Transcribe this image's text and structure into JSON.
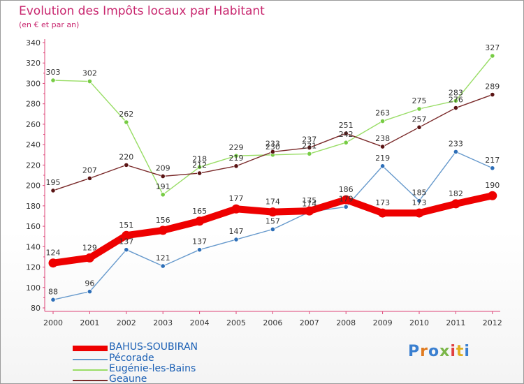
{
  "title": "Evolution des Impôts locaux par Habitant",
  "subtitle": "(en € et par an)",
  "brand": "Proxiti",
  "chart_data": {
    "type": "line",
    "title": "Evolution des Impôts locaux par Habitant",
    "subtitle": "(en € et par an)",
    "xlabel": "",
    "ylabel": "",
    "ylim": [
      80,
      340
    ],
    "ytick_step": 20,
    "grid": false,
    "legend_position": "bottom-left",
    "x": [
      "2000",
      "2001",
      "2002",
      "2003",
      "2004",
      "2005",
      "2006",
      "2007",
      "2008",
      "2009",
      "2010",
      "2011",
      "2012"
    ],
    "series": [
      {
        "name": "Pécorade",
        "color": "#6699cc",
        "marker_color": "#2e6fb8",
        "values": [
          88,
          96,
          137,
          121,
          137,
          147,
          157,
          174,
          179,
          219,
          185,
          233,
          217
        ]
      },
      {
        "name": "Eugénie-les-Bains",
        "color": "#99dd66",
        "marker_color": "#77cc44",
        "values": [
          303,
          302,
          262,
          191,
          218,
          229,
          230,
          231,
          242,
          263,
          275,
          283,
          327
        ]
      },
      {
        "name": "Geaune",
        "color": "#7a2a2a",
        "marker_color": "#5a1414",
        "values": [
          195,
          207,
          220,
          209,
          212,
          219,
          233,
          237,
          251,
          238,
          257,
          276,
          289
        ]
      },
      {
        "name": "BAHUS-SOUBIRAN",
        "color": "#ee0000",
        "marker_color": "#ee0000",
        "values": [
          124,
          129,
          151,
          156,
          165,
          177,
          174,
          175,
          186,
          173,
          173,
          182,
          190
        ],
        "thick": true
      }
    ]
  },
  "legend": [
    {
      "label": "BAHUS-SOUBIRAN",
      "color": "#ee0000",
      "thickness": "thick"
    },
    {
      "label": "Pécorade",
      "color": "#6699cc",
      "thickness": "thin"
    },
    {
      "label": "Eugénie-les-Bains",
      "color": "#99dd66",
      "thickness": "thin"
    },
    {
      "label": "Geaune",
      "color": "#7a2a2a",
      "thickness": "thin"
    }
  ]
}
